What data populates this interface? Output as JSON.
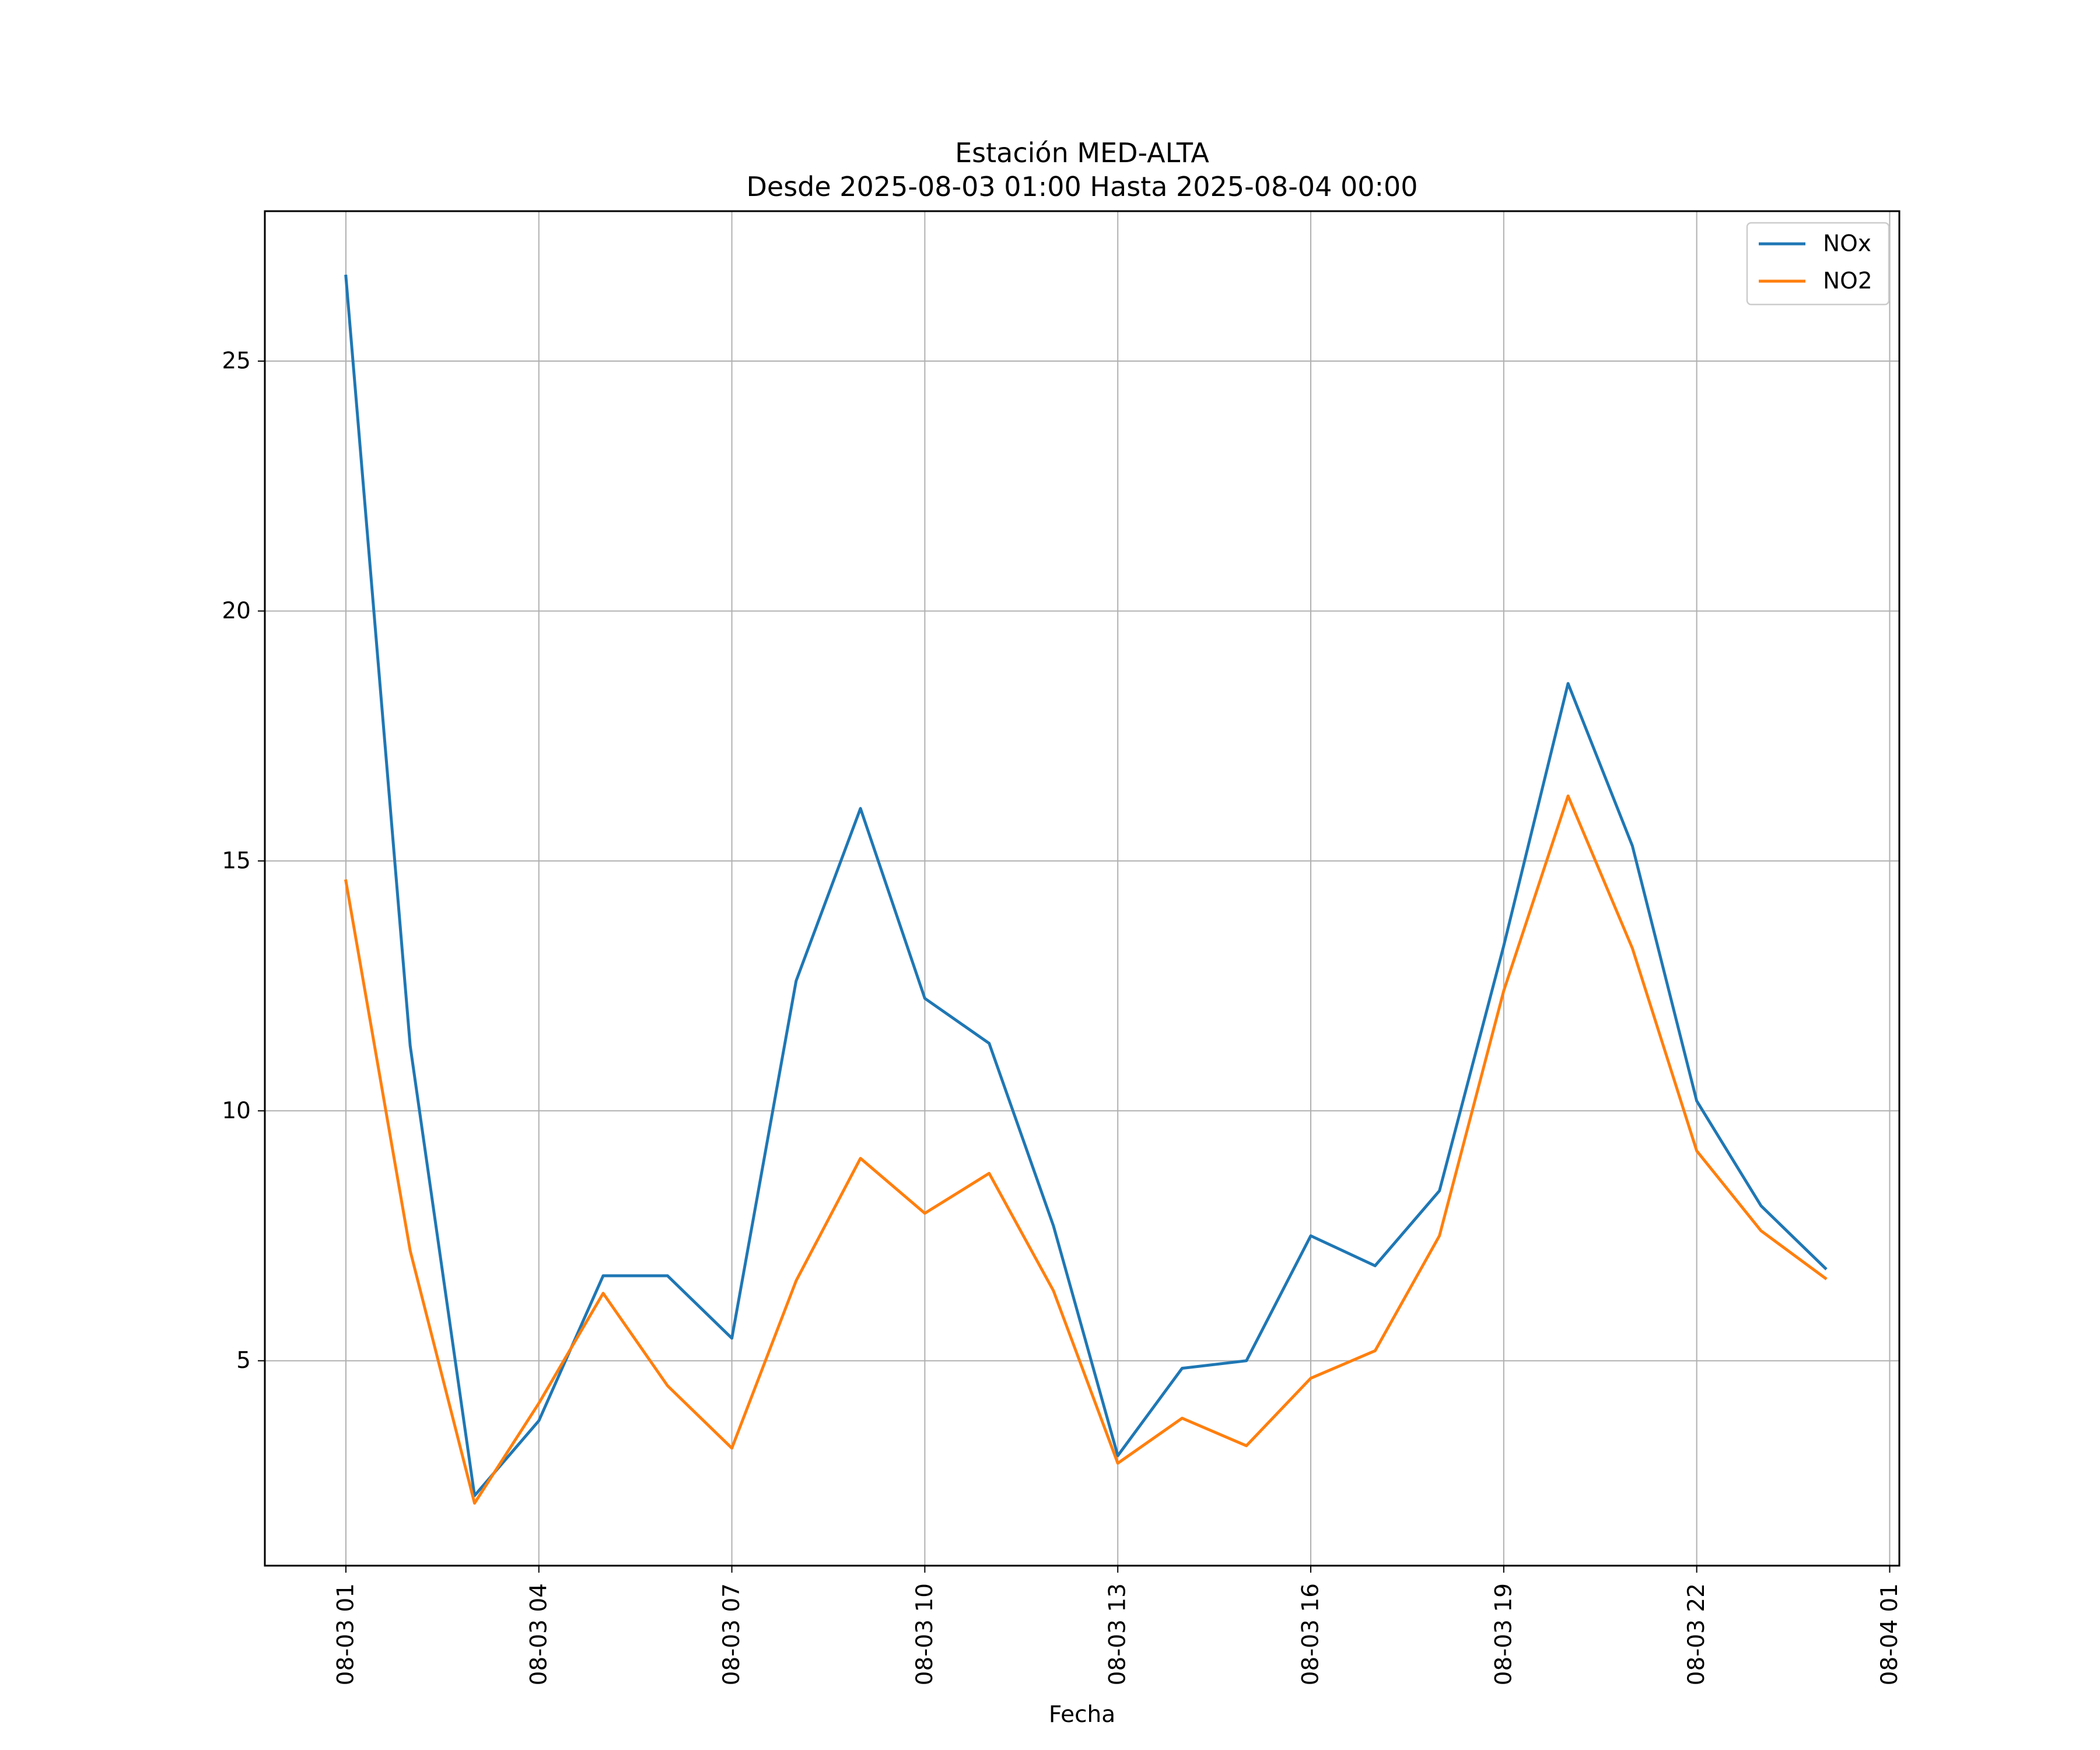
{
  "chart_data": {
    "type": "line",
    "title": "Estación MED-ALTA",
    "subtitle": "Desde 2025-08-03 01:00 Hasta 2025-08-04 00:00",
    "xlabel": "Fecha",
    "ylabel": "",
    "x": [
      "2025-08-03 01:00",
      "2025-08-03 02:00",
      "2025-08-03 03:00",
      "2025-08-03 04:00",
      "2025-08-03 05:00",
      "2025-08-03 06:00",
      "2025-08-03 07:00",
      "2025-08-03 08:00",
      "2025-08-03 09:00",
      "2025-08-03 10:00",
      "2025-08-03 11:00",
      "2025-08-03 12:00",
      "2025-08-03 13:00",
      "2025-08-03 14:00",
      "2025-08-03 15:00",
      "2025-08-03 16:00",
      "2025-08-03 17:00",
      "2025-08-03 18:00",
      "2025-08-03 19:00",
      "2025-08-03 20:00",
      "2025-08-03 21:00",
      "2025-08-03 22:00",
      "2025-08-03 23:00",
      "2025-08-04 00:00"
    ],
    "x_tick_labels": [
      "08-03 01",
      "08-03 04",
      "08-03 07",
      "08-03 10",
      "08-03 13",
      "08-03 16",
      "08-03 19",
      "08-03 22",
      "08-04 01"
    ],
    "x_tick_hours": [
      0,
      3,
      6,
      9,
      12,
      15,
      18,
      21,
      24
    ],
    "y_ticks": [
      5,
      10,
      15,
      20,
      25
    ],
    "ylim": [
      0.9,
      28.0
    ],
    "grid": true,
    "legend_position": "top-right",
    "series": [
      {
        "name": "NOx",
        "color": "#1f77b4",
        "values": [
          26.7,
          11.3,
          2.3,
          3.8,
          6.7,
          6.7,
          5.45,
          12.6,
          16.05,
          12.25,
          11.35,
          7.7,
          3.1,
          4.85,
          5.0,
          7.5,
          6.9,
          8.4,
          13.3,
          18.55,
          15.3,
          10.2,
          8.1,
          6.85
        ]
      },
      {
        "name": "NO2",
        "color": "#ff7f0e",
        "values": [
          14.6,
          7.2,
          2.15,
          4.15,
          6.35,
          4.5,
          3.25,
          6.6,
          9.05,
          7.95,
          8.75,
          6.4,
          2.95,
          3.85,
          3.3,
          4.65,
          5.2,
          7.5,
          12.4,
          16.3,
          13.25,
          9.2,
          7.6,
          6.65
        ]
      }
    ]
  }
}
